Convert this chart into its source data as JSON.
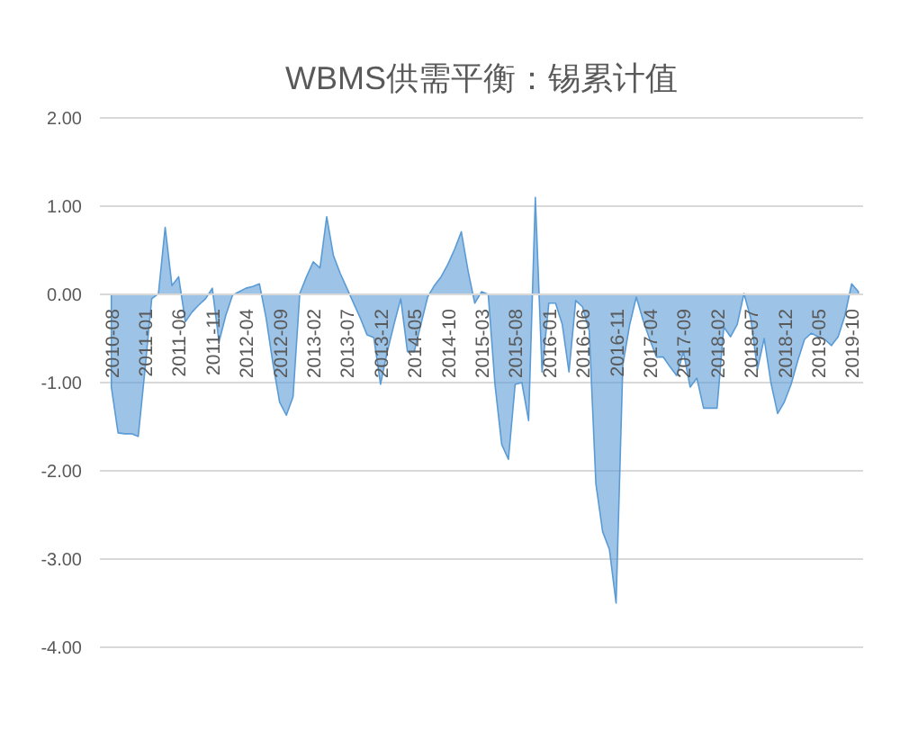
{
  "chart_data": {
    "type": "area",
    "title": "WBMS供需平衡：锡累计值",
    "categories": [
      "2010-08",
      null,
      null,
      null,
      null,
      "2011-01",
      null,
      null,
      null,
      null,
      "2011-06",
      null,
      null,
      null,
      null,
      "2011-11",
      null,
      null,
      null,
      null,
      "2012-04",
      null,
      null,
      null,
      null,
      "2012-09",
      null,
      null,
      null,
      null,
      "2013-02",
      null,
      null,
      null,
      null,
      "2013-07",
      null,
      null,
      null,
      null,
      "2013-12",
      null,
      null,
      null,
      null,
      "2014-05",
      null,
      null,
      null,
      null,
      "2014-10",
      null,
      null,
      null,
      null,
      "2015-03",
      null,
      null,
      null,
      null,
      "2015-08",
      null,
      null,
      null,
      null,
      "2016-01",
      null,
      null,
      null,
      null,
      "2016-06",
      null,
      null,
      null,
      null,
      "2016-11",
      null,
      null,
      null,
      null,
      "2017-04",
      null,
      null,
      null,
      null,
      "2017-09",
      null,
      null,
      null,
      null,
      "2018-02",
      null,
      null,
      null,
      null,
      "2018-07",
      null,
      null,
      null,
      null,
      "2018-12",
      null,
      null,
      null,
      null,
      "2019-05",
      null,
      null,
      null,
      null,
      "2019-10",
      null
    ],
    "values": [
      -1.05,
      -1.57,
      -1.58,
      -1.58,
      -1.61,
      -0.85,
      -0.05,
      0.01,
      0.76,
      0.1,
      0.2,
      -0.31,
      -0.2,
      -0.12,
      -0.05,
      0.07,
      -0.54,
      -0.24,
      -0.01,
      0.03,
      0.07,
      0.09,
      0.12,
      -0.27,
      -0.78,
      -1.22,
      -1.37,
      -1.16,
      0.01,
      0.2,
      0.37,
      0.3,
      0.88,
      0.44,
      0.24,
      0.07,
      -0.1,
      -0.27,
      -0.46,
      -0.49,
      -1.02,
      -0.65,
      -0.34,
      -0.05,
      -0.65,
      -0.65,
      -0.34,
      -0.03,
      0.1,
      0.2,
      0.34,
      0.51,
      0.71,
      0.27,
      -0.1,
      0.03,
      0.0,
      -1.02,
      -1.7,
      -1.87,
      -1.02,
      -1.0,
      -1.43,
      1.1,
      -0.88,
      -0.1,
      -0.1,
      -0.34,
      -0.88,
      -0.07,
      -0.14,
      -0.41,
      -2.15,
      -2.69,
      -2.89,
      -3.5,
      -0.8,
      -0.35,
      -0.03,
      -0.29,
      -0.51,
      -0.71,
      -0.71,
      -0.82,
      -0.92,
      -0.65,
      -1.05,
      -0.95,
      -1.29,
      -1.29,
      -1.29,
      -0.37,
      -0.48,
      -0.34,
      0.01,
      -0.27,
      -0.85,
      -0.5,
      -1.0,
      -1.35,
      -1.22,
      -1.02,
      -0.75,
      -0.51,
      -0.44,
      -0.48,
      -0.51,
      -0.58,
      -0.48,
      -0.24,
      0.12,
      0.03
    ],
    "color": "#5b9bd5",
    "ylim": [
      -4,
      2
    ],
    "yticks": [
      {
        "value": -4,
        "label": "-4.00"
      },
      {
        "value": -3,
        "label": "-3.00"
      },
      {
        "value": -2,
        "label": "-2.00"
      },
      {
        "value": -1,
        "label": "-1.00"
      },
      {
        "value": 0,
        "label": "0.00"
      },
      {
        "value": 1,
        "label": "1.00"
      },
      {
        "value": 2,
        "label": "2.00"
      }
    ],
    "grid": "y"
  }
}
